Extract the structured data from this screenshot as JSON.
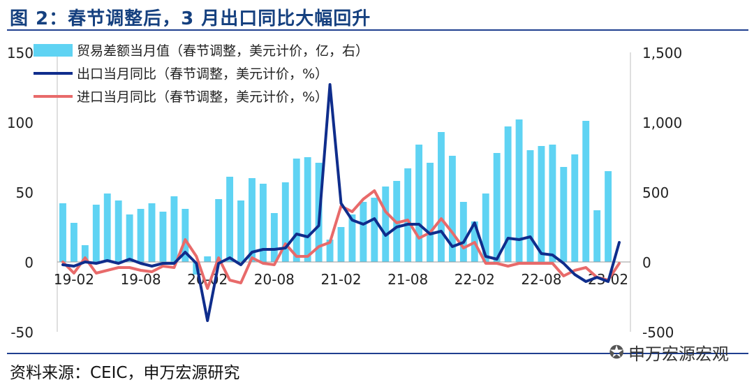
{
  "title": "图 2：春节调整后，3 月出口同比大幅回升",
  "source": "资料来源：CEIC，申万宏源研究",
  "watermark": "申万宏源宏观",
  "chart_data": {
    "type": "bar+line",
    "x": [
      "19-01",
      "19-02",
      "19-03",
      "19-04",
      "19-05",
      "19-06",
      "19-07",
      "19-08",
      "19-09",
      "19-10",
      "19-11",
      "19-12",
      "20-01",
      "20-02",
      "20-03",
      "20-04",
      "20-05",
      "20-06",
      "20-07",
      "20-08",
      "20-09",
      "20-10",
      "20-11",
      "20-12",
      "21-01",
      "21-02",
      "21-03",
      "21-04",
      "21-05",
      "21-06",
      "21-07",
      "21-08",
      "21-09",
      "21-10",
      "21-11",
      "21-12",
      "22-01",
      "22-02",
      "22-03",
      "22-04",
      "22-05",
      "22-06",
      "22-07",
      "22-08",
      "22-09",
      "22-10",
      "22-11",
      "22-12",
      "23-01",
      "23-02",
      "23-03"
    ],
    "x_tick_labels": [
      "19-02",
      "19-08",
      "20-02",
      "20-08",
      "21-02",
      "21-08",
      "22-02",
      "22-08",
      "23-02"
    ],
    "left_axis": {
      "ylim": [
        -50,
        150
      ],
      "ticks": [
        "-50",
        "0",
        "50",
        "100",
        "150"
      ]
    },
    "right_axis": {
      "ylim": [
        -500,
        1500
      ],
      "ticks": [
        "-500",
        "0",
        "500",
        "1,000",
        "1,500"
      ]
    },
    "legend": {
      "placement": "top-left",
      "items": [
        {
          "label": "贸易差额当月值（春节调整，美元计价，亿，右）",
          "kind": "bar",
          "color": "#5fd3f3"
        },
        {
          "label": "出口当月同比（春节调整，美元计价，%）",
          "kind": "line",
          "color": "#0f2d8c"
        },
        {
          "label": "进口当月同比（春节调整，美元计价，%）",
          "kind": "line",
          "color": "#e86a6a"
        }
      ]
    },
    "series": [
      {
        "name": "贸易差额当月值（春节调整，美元计价，亿，右）",
        "type": "bar",
        "axis": "right",
        "values": [
          420,
          280,
          120,
          410,
          490,
          440,
          340,
          380,
          420,
          360,
          470,
          380,
          -90,
          40,
          450,
          610,
          440,
          600,
          560,
          350,
          570,
          740,
          750,
          710,
          160,
          250,
          340,
          430,
          460,
          540,
          580,
          670,
          840,
          710,
          930,
          760,
          430,
          290,
          490,
          780,
          970,
          1020,
          800,
          830,
          840,
          680,
          770,
          1010,
          370,
          650,
          0
        ]
      },
      {
        "name": "出口当月同比（春节调整，美元计价，%）",
        "type": "line",
        "axis": "left",
        "values": [
          -2,
          -3,
          0,
          -1,
          1,
          -1,
          2,
          -1,
          -3,
          -1,
          -1,
          7,
          -1,
          -42,
          -1,
          3,
          -2,
          7,
          9,
          9,
          10,
          20,
          18,
          26,
          127,
          42,
          30,
          27,
          31,
          19,
          25,
          27,
          27,
          20,
          22,
          11,
          14,
          28,
          4,
          2,
          17,
          16,
          18,
          6,
          5,
          -1,
          -9,
          -14,
          -11,
          -14,
          14
        ]
      },
      {
        "name": "进口当月同比（春节调整，美元计价，%）",
        "type": "line",
        "axis": "left",
        "values": [
          0,
          -8,
          3,
          -8,
          -6,
          -4,
          -4,
          -6,
          -7,
          -3,
          -4,
          16,
          4,
          -19,
          3,
          -13,
          -15,
          3,
          -1,
          -2,
          13,
          4,
          4,
          11,
          14,
          40,
          36,
          45,
          51,
          36,
          28,
          30,
          17,
          21,
          31,
          21,
          10,
          14,
          -1,
          -1,
          -3,
          -1,
          -1,
          -1,
          -1,
          -10,
          -6,
          -4,
          -11,
          -13,
          -1
        ]
      }
    ]
  }
}
